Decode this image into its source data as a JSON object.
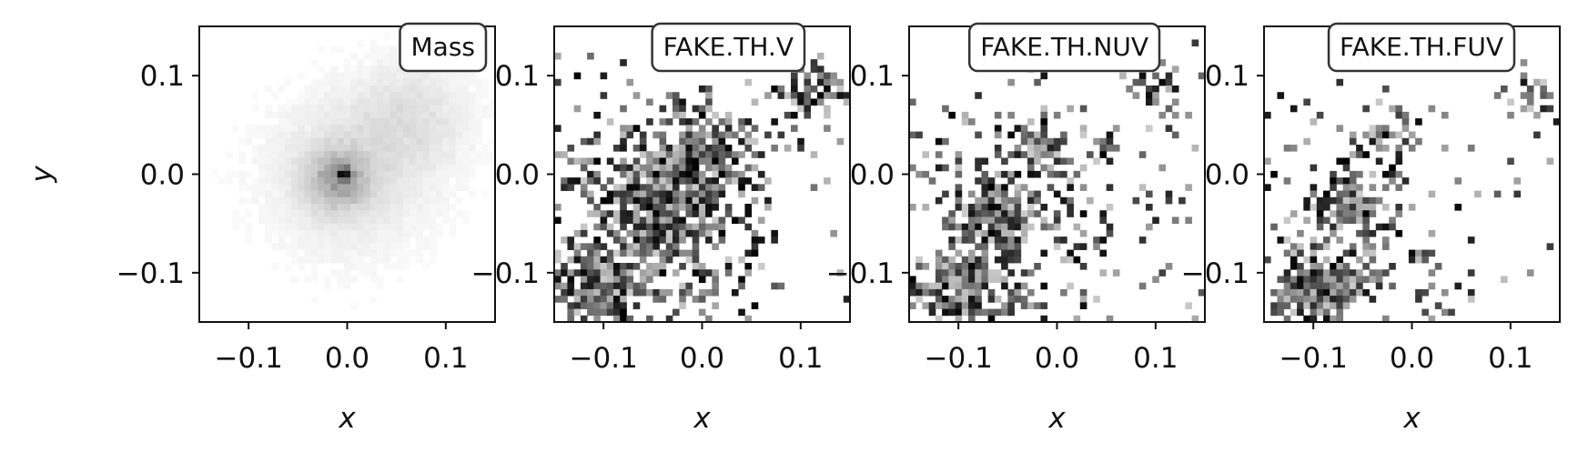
{
  "chart_data": [
    {
      "type": "heatmap",
      "title": "Mass",
      "xlabel": "x",
      "ylabel": "y",
      "xlim": [
        -0.15,
        0.15
      ],
      "ylim": [
        -0.15,
        0.15
      ],
      "xticks": [
        "−0.1",
        "0.0",
        "0.1"
      ],
      "yticks": [
        "0.1",
        "0.0",
        "−0.1"
      ],
      "colormap": "greys",
      "blobs": [
        {
          "x": -0.003,
          "y": 0.0,
          "sigma": 0.004,
          "amp": 1.0
        },
        {
          "x": -0.01,
          "y": -0.005,
          "sigma": 0.02,
          "amp": 0.28
        },
        {
          "x": 0.0,
          "y": 0.0,
          "sigma": 0.055,
          "amp": 0.12
        },
        {
          "x": 0.07,
          "y": 0.06,
          "sigma": 0.04,
          "amp": 0.1
        }
      ]
    },
    {
      "type": "heatmap",
      "title": "FAKE.TH.V",
      "xlabel": "x",
      "ylabel": "",
      "xlim": [
        -0.15,
        0.15
      ],
      "ylim": [
        -0.15,
        0.15
      ],
      "xticks": [
        "−0.1",
        "0.0",
        "0.1"
      ],
      "yticks": [
        "0.1",
        "0.0",
        "−0.1"
      ],
      "colormap": "greys",
      "blobs": [
        {
          "x": -0.04,
          "y": -0.03,
          "sigma": 0.03,
          "amp": 0.9
        },
        {
          "x": 0.0,
          "y": 0.02,
          "sigma": 0.03,
          "amp": 0.8
        },
        {
          "x": -0.1,
          "y": -0.12,
          "sigma": 0.025,
          "amp": 0.9
        },
        {
          "x": 0.11,
          "y": 0.08,
          "sigma": 0.02,
          "amp": 0.7
        },
        {
          "x": -0.05,
          "y": -0.05,
          "sigma": 0.07,
          "amp": 0.5
        }
      ]
    },
    {
      "type": "heatmap",
      "title": "FAKE.TH.NUV",
      "xlabel": "x",
      "ylabel": "",
      "xlim": [
        -0.15,
        0.15
      ],
      "ylim": [
        -0.15,
        0.15
      ],
      "xticks": [
        "−0.1",
        "0.0",
        "0.1"
      ],
      "yticks": [
        "0.1",
        "0.0",
        "−0.1"
      ],
      "colormap": "greys",
      "blobs": [
        {
          "x": -0.06,
          "y": -0.04,
          "sigma": 0.025,
          "amp": 0.8
        },
        {
          "x": -0.02,
          "y": 0.03,
          "sigma": 0.02,
          "amp": 0.6
        },
        {
          "x": -0.1,
          "y": -0.12,
          "sigma": 0.025,
          "amp": 0.9
        },
        {
          "x": 0.11,
          "y": 0.08,
          "sigma": 0.02,
          "amp": 0.6
        },
        {
          "x": -0.05,
          "y": -0.06,
          "sigma": 0.07,
          "amp": 0.35
        }
      ]
    },
    {
      "type": "heatmap",
      "title": "FAKE.TH.FUV",
      "xlabel": "x",
      "ylabel": "",
      "xlim": [
        -0.15,
        0.15
      ],
      "ylim": [
        -0.15,
        0.15
      ],
      "xticks": [
        "−0.1",
        "0.0",
        "0.1"
      ],
      "yticks": [
        "0.1",
        "0.0",
        "−0.1"
      ],
      "colormap": "greys",
      "blobs": [
        {
          "x": -0.06,
          "y": -0.03,
          "sigma": 0.02,
          "amp": 0.7
        },
        {
          "x": -0.1,
          "y": -0.12,
          "sigma": 0.025,
          "amp": 0.95
        },
        {
          "x": -0.02,
          "y": 0.04,
          "sigma": 0.02,
          "amp": 0.5
        },
        {
          "x": 0.12,
          "y": 0.08,
          "sigma": 0.015,
          "amp": 0.6
        },
        {
          "x": -0.06,
          "y": -0.07,
          "sigma": 0.06,
          "amp": 0.25
        }
      ]
    }
  ]
}
